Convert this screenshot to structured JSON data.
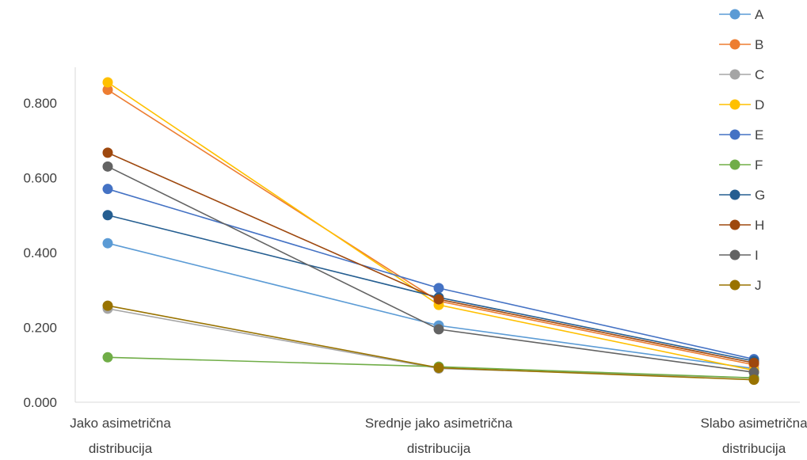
{
  "chart_data": {
    "type": "line",
    "title": "",
    "xlabel": "",
    "ylabel": "",
    "categories": [
      [
        "Jako asimetrična",
        "distribucija"
      ],
      [
        "Srednje jako asimetrična",
        "distribucija"
      ],
      [
        "Slabo asimetrična",
        "distribucija"
      ]
    ],
    "ylim": [
      0,
      0.8
    ],
    "yticks": [
      "0.000",
      "0.200",
      "0.400",
      "0.600",
      "0.800"
    ],
    "legend_position": "top-right",
    "grid": false,
    "series": [
      {
        "name": "A",
        "color": "#5B9BD5",
        "values": [
          0.425,
          0.205,
          0.09
        ]
      },
      {
        "name": "B",
        "color": "#ED7D31",
        "values": [
          0.835,
          0.27,
          0.1
        ]
      },
      {
        "name": "C",
        "color": "#A5A5A5",
        "values": [
          0.25,
          0.09,
          0.065
        ]
      },
      {
        "name": "D",
        "color": "#FFC000",
        "values": [
          0.855,
          0.26,
          0.085
        ]
      },
      {
        "name": "E",
        "color": "#4472C4",
        "values": [
          0.57,
          0.305,
          0.115
        ]
      },
      {
        "name": "F",
        "color": "#70AD47",
        "values": [
          0.12,
          0.095,
          0.065
        ]
      },
      {
        "name": "G",
        "color": "#255E91",
        "values": [
          0.5,
          0.28,
          0.11
        ]
      },
      {
        "name": "H",
        "color": "#9E480E",
        "values": [
          0.667,
          0.275,
          0.105
        ]
      },
      {
        "name": "I",
        "color": "#636363",
        "values": [
          0.63,
          0.195,
          0.08
        ]
      },
      {
        "name": "J",
        "color": "#997300",
        "values": [
          0.258,
          0.092,
          0.06
        ]
      }
    ]
  }
}
